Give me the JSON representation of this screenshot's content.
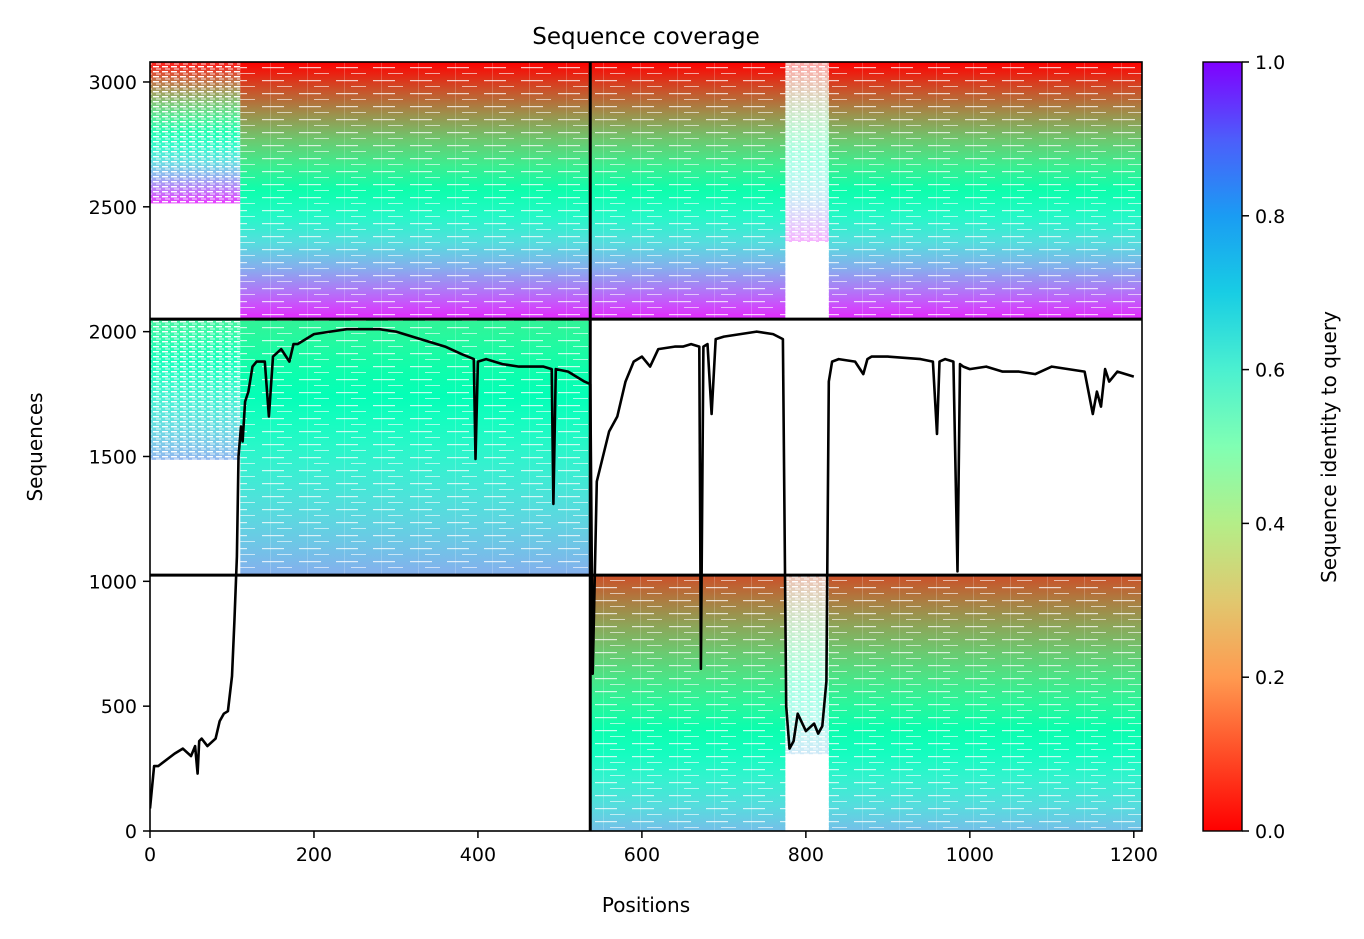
{
  "chart_data": {
    "type": "heatmap",
    "title": "Sequence coverage",
    "xlabel": "Positions",
    "ylabel": "Sequences",
    "xlim": [
      0,
      1210
    ],
    "ylim": [
      0,
      3080
    ],
    "x_ticks": [
      0,
      200,
      400,
      600,
      800,
      1000,
      1200
    ],
    "y_ticks": [
      0,
      500,
      1000,
      1500,
      2000,
      2500,
      3000
    ],
    "colorbar": {
      "label": "Sequence identity to query",
      "range": [
        0.0,
        1.0
      ],
      "ticks": [
        "0.0",
        "0.2",
        "0.4",
        "0.6",
        "0.8",
        "1.0"
      ],
      "colormap": "rainbow"
    },
    "blocks": [
      {
        "name": "chain-A-paired",
        "x": [
          0,
          537
        ],
        "y": [
          2050,
          3080
        ],
        "identity_top": 1.0,
        "identity_bottom": 0.05,
        "coverage_start": 110
      },
      {
        "name": "chain-B-paired",
        "x": [
          537,
          1210
        ],
        "y": [
          2050,
          3080
        ],
        "identity_top": 1.0,
        "identity_bottom": 0.05,
        "gap": [
          775,
          828
        ]
      },
      {
        "name": "chain-A-unpaired",
        "x": [
          0,
          537
        ],
        "y": [
          1025,
          2050
        ],
        "identity_top": 0.6,
        "identity_bottom": 0.24,
        "coverage_start": 110
      },
      {
        "name": "chain-B-unpaired",
        "x": [
          537,
          1210
        ],
        "y": [
          0,
          1025
        ],
        "identity_top": 0.9,
        "identity_bottom": 0.27,
        "gap": [
          775,
          828
        ]
      }
    ],
    "chain_boundaries": {
      "x": [
        537
      ],
      "y": [
        1025,
        2050
      ]
    },
    "coverage_line": {
      "x": [
        0,
        5,
        10,
        30,
        35,
        40,
        50,
        55,
        58,
        60,
        63,
        70,
        80,
        85,
        90,
        95,
        100,
        103,
        106,
        108,
        111,
        113,
        116,
        120,
        125,
        130,
        140,
        145,
        150,
        160,
        170,
        175,
        180,
        190,
        200,
        220,
        240,
        260,
        280,
        300,
        320,
        340,
        360,
        380,
        395,
        397,
        400,
        410,
        430,
        450,
        470,
        480,
        490,
        492,
        495,
        510,
        520,
        530,
        537,
        540,
        545,
        560,
        570,
        580,
        590,
        600,
        610,
        620,
        640,
        650,
        660,
        670,
        672,
        675,
        680,
        685,
        690,
        700,
        720,
        740,
        760,
        772,
        776,
        780,
        785,
        790,
        800,
        810,
        815,
        820,
        825,
        828,
        832,
        840,
        860,
        870,
        875,
        880,
        900,
        940,
        955,
        960,
        963,
        970,
        980,
        985,
        988,
        992,
        1000,
        1020,
        1040,
        1060,
        1080,
        1100,
        1120,
        1140,
        1150,
        1155,
        1160,
        1165,
        1170,
        1180,
        1200,
        1210
      ],
      "y": [
        90,
        260,
        260,
        310,
        320,
        330,
        300,
        340,
        230,
        360,
        370,
        340,
        370,
        440,
        470,
        480,
        620,
        840,
        1100,
        1500,
        1620,
        1560,
        1720,
        1760,
        1860,
        1880,
        1880,
        1660,
        1900,
        1930,
        1880,
        1950,
        1950,
        1970,
        1990,
        2000,
        2010,
        2010,
        2010,
        2000,
        1980,
        1960,
        1940,
        1910,
        1890,
        1490,
        1880,
        1890,
        1870,
        1860,
        1860,
        1860,
        1850,
        1310,
        1850,
        1840,
        1820,
        1800,
        1790,
        630,
        1400,
        1600,
        1660,
        1800,
        1880,
        1900,
        1860,
        1930,
        1940,
        1940,
        1950,
        1940,
        650,
        1940,
        1950,
        1670,
        1970,
        1980,
        1990,
        2000,
        1990,
        1970,
        500,
        330,
        360,
        470,
        400,
        430,
        390,
        420,
        600,
        1800,
        1880,
        1890,
        1880,
        1830,
        1890,
        1900,
        1900,
        1890,
        1880,
        1590,
        1880,
        1890,
        1880,
        1040,
        1870,
        1860,
        1850,
        1860,
        1840,
        1840,
        1830,
        1860,
        1850,
        1840,
        1670,
        1760,
        1700,
        1850,
        1800,
        1840,
        1820
      ]
    }
  }
}
